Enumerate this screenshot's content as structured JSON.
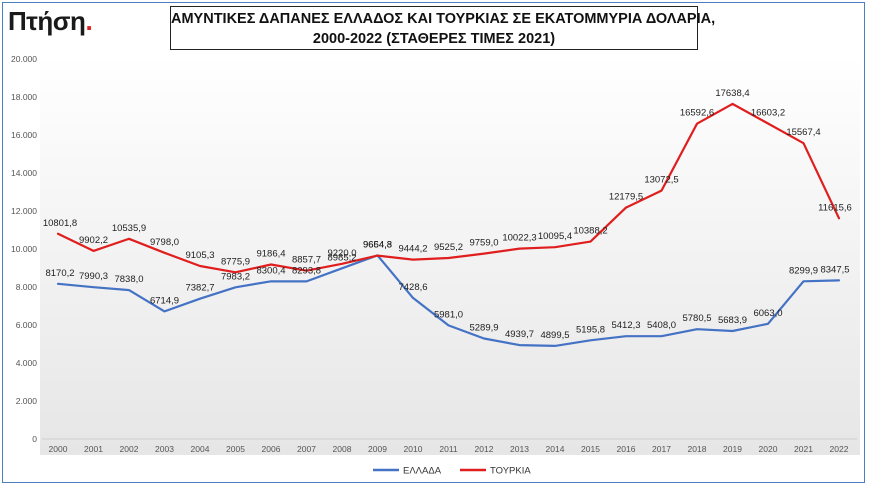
{
  "logo": {
    "text": "Πτήση",
    "dot": "."
  },
  "title": {
    "line1": "ΑΜΥΝΤΙΚΕΣ ΔΑΠΑΝΕΣ ΕΛΛΑΔΟΣ ΚΑΙ ΤΟΥΡΚΙΑΣ ΣΕ ΕΚΑΤΟΜΜΥΡΙΑ ΔΟΛΑΡΙΑ,",
    "line2": "2000-2022 (ΣΤΑΘΕΡΕΣ ΤΙΜΕΣ 2021)"
  },
  "chart_data": {
    "type": "line",
    "title": "ΑΜΥΝΤΙΚΕΣ ΔΑΠΑΝΕΣ ΕΛΛΑΔΟΣ ΚΑΙ ΤΟΥΡΚΙΑΣ ΣΕ ΕΚΑΤΟΜΜΥΡΙΑ ΔΟΛΑΡΙΑ, 2000-2022 (ΣΤΑΘΕΡΕΣ ΤΙΜΕΣ 2021)",
    "categories": [
      "2000",
      "2001",
      "2002",
      "2003",
      "2004",
      "2005",
      "2006",
      "2007",
      "2008",
      "2009",
      "2010",
      "2011",
      "2012",
      "2013",
      "2014",
      "2015",
      "2016",
      "2017",
      "2018",
      "2019",
      "2020",
      "2021",
      "2022"
    ],
    "ylim": [
      0,
      20000
    ],
    "yticks": [
      0,
      2000,
      4000,
      6000,
      8000,
      10000,
      12000,
      14000,
      16000,
      18000,
      20000
    ],
    "ytick_labels": [
      "0",
      "2.000",
      "4.000",
      "6.000",
      "8.000",
      "10.000",
      "12.000",
      "14.000",
      "16.000",
      "18.000",
      "20.000"
    ],
    "grid": false,
    "legend_position": "bottom",
    "series": [
      {
        "name": "ΕΛΛΑΔΑ",
        "color": "#4472c4",
        "values": [
          8170.2,
          7990.3,
          7838.0,
          6714.9,
          7382.7,
          7983.2,
          8300.4,
          8293.8,
          8985.2,
          9664.8,
          7428.6,
          5981.0,
          5289.9,
          4939.7,
          4899.5,
          5195.8,
          5412.3,
          5408.0,
          5780.5,
          5683.9,
          6063.0,
          8299.9,
          8347.5
        ],
        "labels": [
          "8170,2",
          "7990,3",
          "7838,0",
          "6714,9",
          "7382,7",
          "7983,2",
          "8300,4",
          "8293,8",
          "8985,2",
          "9664,8",
          "7428,6",
          "5981,0",
          "5289,9",
          "4939,7",
          "4899,5",
          "5195,8",
          "5412,3",
          "5408,0",
          "5780,5",
          "5683,9",
          "6063,0",
          "8299,9",
          "8347,5"
        ]
      },
      {
        "name": "ΤΟΥΡΚΙΑ",
        "color": "#e01e1e",
        "values": [
          10801.8,
          9902.2,
          10535.9,
          9798.0,
          9105.3,
          8775.9,
          9186.4,
          8857.7,
          9220.0,
          9654.3,
          9444.2,
          9525.2,
          9759.0,
          10022.3,
          10095.4,
          10388.2,
          12179.5,
          13072.5,
          16592.6,
          17638.4,
          16603.2,
          15567.4,
          11615.6
        ],
        "labels": [
          "10801,8",
          "9902,2",
          "10535,9",
          "9798,0",
          "9105,3",
          "8775,9",
          "9186,4",
          "8857,7",
          "9220,0",
          "9654,3",
          "9444,2",
          "9525,2",
          "9759,0",
          "10022,3",
          "10095,4",
          "10388,2",
          "12179,5",
          "13072,5",
          "16592,6",
          "17638,4",
          "16603,2",
          "15567,4",
          "11615,6"
        ]
      }
    ]
  }
}
